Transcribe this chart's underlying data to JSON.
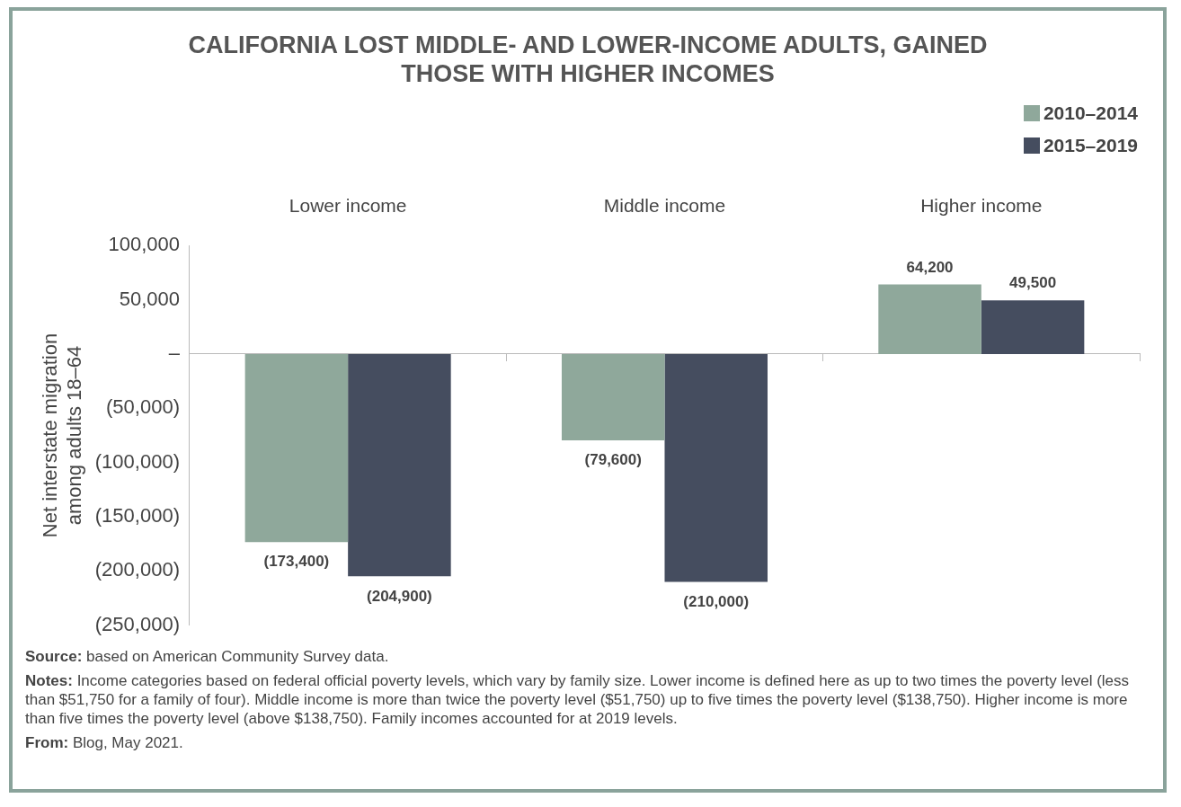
{
  "chart_data": {
    "type": "bar",
    "title": "CALIFORNIA LOST MIDDLE- AND LOWER-INCOME ADULTS, GAINED THOSE WITH HIGHER INCOMES",
    "ylabel": "Net interstate migration\namong adults 18–64",
    "categories": [
      "Lower income",
      "Middle income",
      "Higher income"
    ],
    "series": [
      {
        "name": "2010–2014",
        "color": "#8fa89b",
        "values": [
          -173400,
          -79600,
          64200
        ],
        "value_labels": [
          "(173,400)",
          "(79,600)",
          "64,200"
        ]
      },
      {
        "name": "2015–2019",
        "color": "#454d5f",
        "values": [
          -204900,
          -210000,
          49500
        ],
        "value_labels": [
          "(204,900)",
          "(210,000)",
          "49,500"
        ]
      }
    ],
    "ylim": [
      -250000,
      100000
    ],
    "yticks": [
      {
        "value": -250000,
        "label": "(250,000)"
      },
      {
        "value": -200000,
        "label": "(200,000)"
      },
      {
        "value": -150000,
        "label": "(150,000)"
      },
      {
        "value": -100000,
        "label": "(100,000)"
      },
      {
        "value": -50000,
        "label": "(50,000)"
      },
      {
        "value": 0,
        "label": "–"
      },
      {
        "value": 50000,
        "label": "50,000"
      },
      {
        "value": 100000,
        "label": "100,000"
      }
    ],
    "legend": "top right",
    "annotations": [
      "Source: based on American Community Survey data.",
      "Notes: Income categories based on federal official poverty levels, which vary by family size. Lower income is defined here as up to two times the poverty level (less than $51,750 for a family of four). Middle income is more than twice the poverty level ($51,750) up to five times the poverty level ($138,750). Higher income is more than five times the poverty level (above $138,750). Family incomes accounted for at 2019 levels.",
      "From: Blog, May 2021."
    ]
  }
}
